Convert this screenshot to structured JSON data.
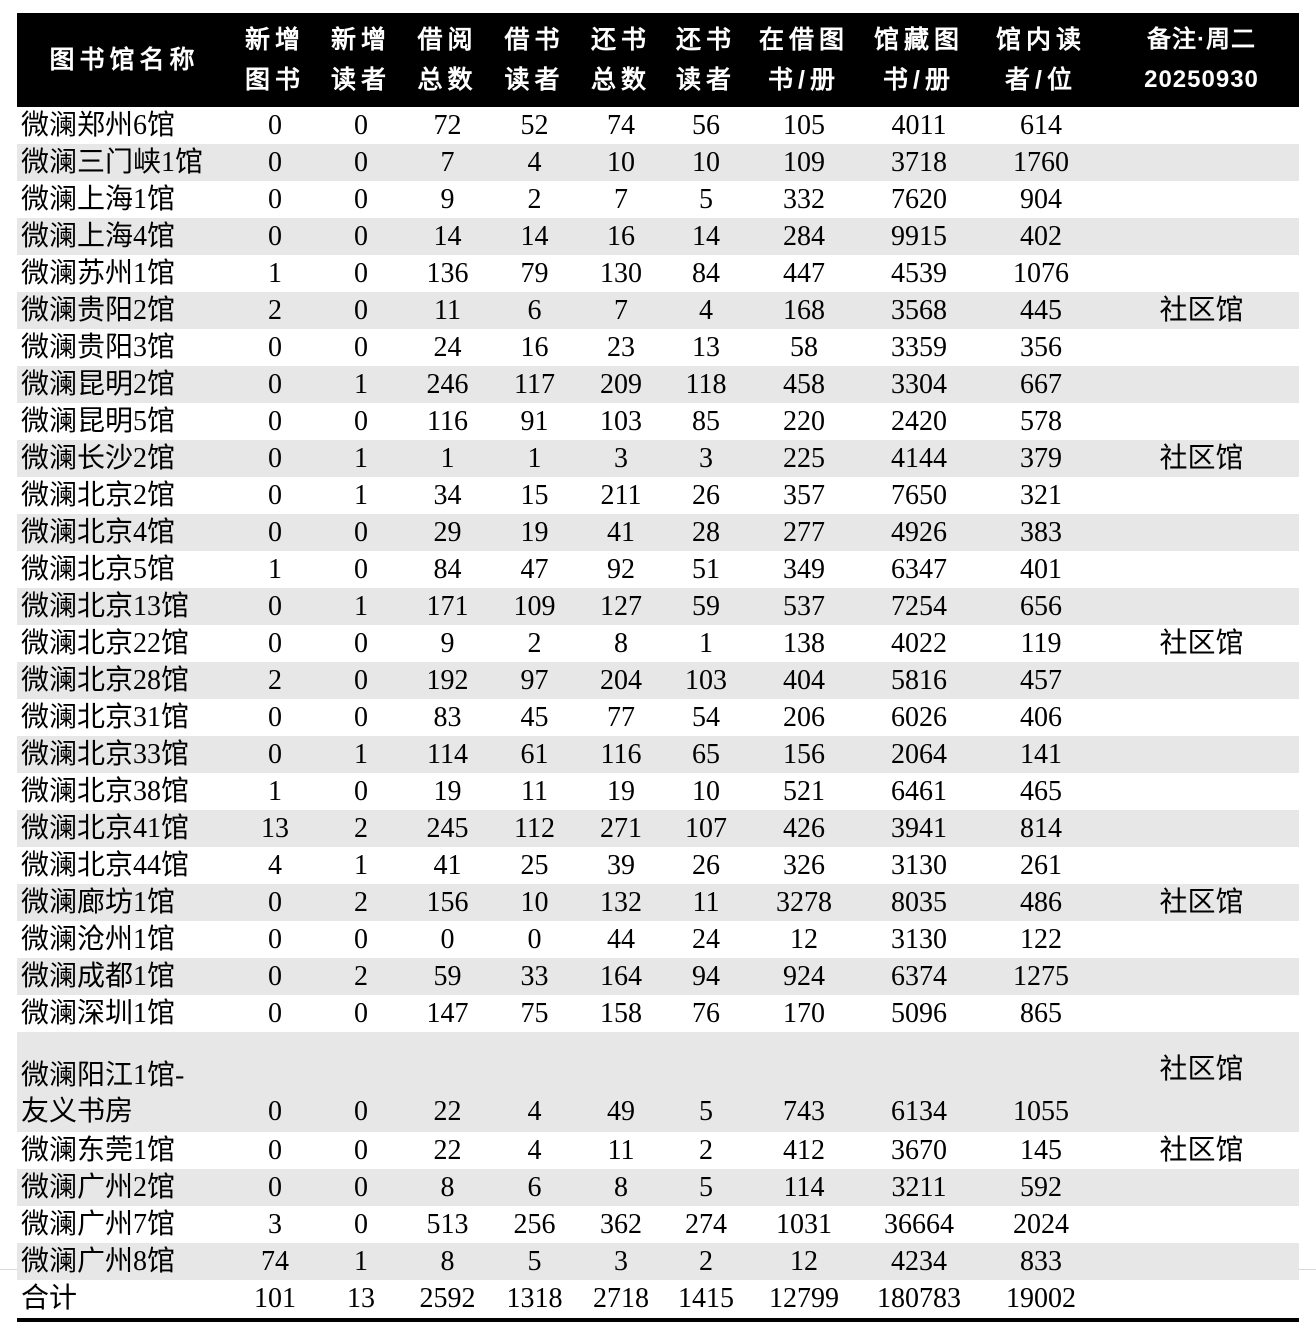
{
  "table": {
    "columns": [
      {
        "label": "图书馆名称",
        "type": "name"
      },
      {
        "label": "新增\n图书",
        "type": "num"
      },
      {
        "label": "新增\n读者",
        "type": "num"
      },
      {
        "label": "借阅\n总数",
        "type": "num"
      },
      {
        "label": "借书\n读者",
        "type": "num"
      },
      {
        "label": "还书\n总数",
        "type": "num"
      },
      {
        "label": "还书\n读者",
        "type": "num"
      },
      {
        "label": "在借图\n书/册",
        "type": "num"
      },
      {
        "label": "馆藏图\n书/册",
        "type": "num"
      },
      {
        "label": "馆内读\n者/位",
        "type": "num"
      },
      {
        "label": "备注·周二\n20250930",
        "type": "note"
      }
    ],
    "rows": [
      {
        "name": "微澜郑州6馆",
        "values": [
          "0",
          "0",
          "72",
          "52",
          "74",
          "56",
          "105",
          "4011",
          "614"
        ],
        "note": ""
      },
      {
        "name": "微澜三门峡1馆",
        "values": [
          "0",
          "0",
          "7",
          "4",
          "10",
          "10",
          "109",
          "3718",
          "1760"
        ],
        "note": ""
      },
      {
        "name": "微澜上海1馆",
        "values": [
          "0",
          "0",
          "9",
          "2",
          "7",
          "5",
          "332",
          "7620",
          "904"
        ],
        "note": ""
      },
      {
        "name": "微澜上海4馆",
        "values": [
          "0",
          "0",
          "14",
          "14",
          "16",
          "14",
          "284",
          "9915",
          "402"
        ],
        "note": ""
      },
      {
        "name": "微澜苏州1馆",
        "values": [
          "1",
          "0",
          "136",
          "79",
          "130",
          "84",
          "447",
          "4539",
          "1076"
        ],
        "note": ""
      },
      {
        "name": "微澜贵阳2馆",
        "values": [
          "2",
          "0",
          "11",
          "6",
          "7",
          "4",
          "168",
          "3568",
          "445"
        ],
        "note": "社区馆"
      },
      {
        "name": "微澜贵阳3馆",
        "values": [
          "0",
          "0",
          "24",
          "16",
          "23",
          "13",
          "58",
          "3359",
          "356"
        ],
        "note": ""
      },
      {
        "name": "微澜昆明2馆",
        "values": [
          "0",
          "1",
          "246",
          "117",
          "209",
          "118",
          "458",
          "3304",
          "667"
        ],
        "note": ""
      },
      {
        "name": "微澜昆明5馆",
        "values": [
          "0",
          "0",
          "116",
          "91",
          "103",
          "85",
          "220",
          "2420",
          "578"
        ],
        "note": ""
      },
      {
        "name": "微澜长沙2馆",
        "values": [
          "0",
          "1",
          "1",
          "1",
          "3",
          "3",
          "225",
          "4144",
          "379"
        ],
        "note": "社区馆"
      },
      {
        "name": "微澜北京2馆",
        "values": [
          "0",
          "1",
          "34",
          "15",
          "211",
          "26",
          "357",
          "7650",
          "321"
        ],
        "note": ""
      },
      {
        "name": "微澜北京4馆",
        "values": [
          "0",
          "0",
          "29",
          "19",
          "41",
          "28",
          "277",
          "4926",
          "383"
        ],
        "note": ""
      },
      {
        "name": "微澜北京5馆",
        "values": [
          "1",
          "0",
          "84",
          "47",
          "92",
          "51",
          "349",
          "6347",
          "401"
        ],
        "note": ""
      },
      {
        "name": "微澜北京13馆",
        "values": [
          "0",
          "1",
          "171",
          "109",
          "127",
          "59",
          "537",
          "7254",
          "656"
        ],
        "note": ""
      },
      {
        "name": "微澜北京22馆",
        "values": [
          "0",
          "0",
          "9",
          "2",
          "8",
          "1",
          "138",
          "4022",
          "119"
        ],
        "note": "社区馆"
      },
      {
        "name": "微澜北京28馆",
        "values": [
          "2",
          "0",
          "192",
          "97",
          "204",
          "103",
          "404",
          "5816",
          "457"
        ],
        "note": ""
      },
      {
        "name": "微澜北京31馆",
        "values": [
          "0",
          "0",
          "83",
          "45",
          "77",
          "54",
          "206",
          "6026",
          "406"
        ],
        "note": ""
      },
      {
        "name": "微澜北京33馆",
        "values": [
          "0",
          "1",
          "114",
          "61",
          "116",
          "65",
          "156",
          "2064",
          "141"
        ],
        "note": ""
      },
      {
        "name": "微澜北京38馆",
        "values": [
          "1",
          "0",
          "19",
          "11",
          "19",
          "10",
          "521",
          "6461",
          "465"
        ],
        "note": ""
      },
      {
        "name": "微澜北京41馆",
        "values": [
          "13",
          "2",
          "245",
          "112",
          "271",
          "107",
          "426",
          "3941",
          "814"
        ],
        "note": ""
      },
      {
        "name": "微澜北京44馆",
        "values": [
          "4",
          "1",
          "41",
          "25",
          "39",
          "26",
          "326",
          "3130",
          "261"
        ],
        "note": ""
      },
      {
        "name": "微澜廊坊1馆",
        "values": [
          "0",
          "2",
          "156",
          "10",
          "132",
          "11",
          "3278",
          "8035",
          "486"
        ],
        "note": "社区馆"
      },
      {
        "name": "微澜沧州1馆",
        "values": [
          "0",
          "0",
          "0",
          "0",
          "44",
          "24",
          "12",
          "3130",
          "122"
        ],
        "note": ""
      },
      {
        "name": "微澜成都1馆",
        "values": [
          "0",
          "2",
          "59",
          "33",
          "164",
          "94",
          "924",
          "6374",
          "1275"
        ],
        "note": ""
      },
      {
        "name": "微澜深圳1馆",
        "values": [
          "0",
          "0",
          "147",
          "75",
          "158",
          "76",
          "170",
          "5096",
          "865"
        ],
        "note": ""
      },
      {
        "name": "微澜阳江1馆-\n友义书房",
        "values": [
          "0",
          "0",
          "22",
          "4",
          "49",
          "5",
          "743",
          "6134",
          "1055"
        ],
        "note": "社区馆"
      },
      {
        "name": "微澜东莞1馆",
        "values": [
          "0",
          "0",
          "22",
          "4",
          "11",
          "2",
          "412",
          "3670",
          "145"
        ],
        "note": "社区馆"
      },
      {
        "name": "微澜广州2馆",
        "values": [
          "0",
          "0",
          "8",
          "6",
          "8",
          "5",
          "114",
          "3211",
          "592"
        ],
        "note": ""
      },
      {
        "name": "微澜广州7馆",
        "values": [
          "3",
          "0",
          "513",
          "256",
          "362",
          "274",
          "1031",
          "36664",
          "2024"
        ],
        "note": ""
      },
      {
        "name": "微澜广州8馆",
        "values": [
          "74",
          "1",
          "8",
          "5",
          "3",
          "2",
          "12",
          "4234",
          "833"
        ],
        "note": ""
      }
    ],
    "total_row": {
      "name": "合计",
      "values": [
        "101",
        "13",
        "2592",
        "1318",
        "2718",
        "1415",
        "12799",
        "180783",
        "19002"
      ],
      "note": ""
    }
  }
}
